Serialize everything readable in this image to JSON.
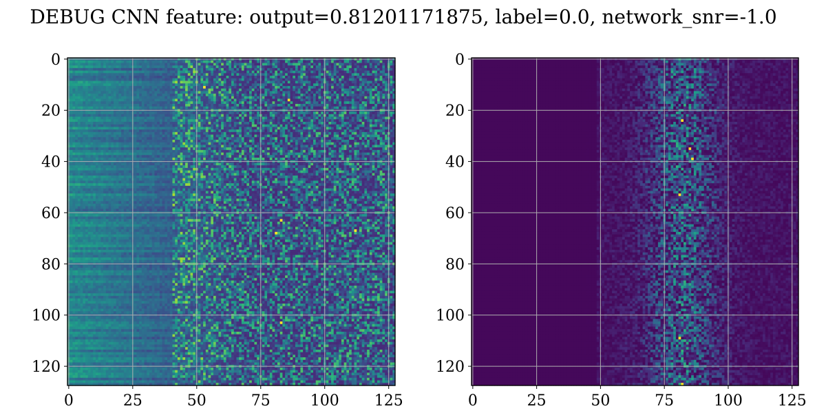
{
  "figure": {
    "title": "DEBUG CNN feature: output=0.81201171875, label=0.0, network_snr=-1.0"
  },
  "chart_data": [
    {
      "type": "heatmap",
      "panel": "left",
      "title": "",
      "xlabel": "",
      "ylabel": "",
      "shape": [
        128,
        128
      ],
      "xlim": [
        -0.5,
        127.5
      ],
      "ylim": [
        127.5,
        -0.5
      ],
      "xticks": [
        0,
        25,
        50,
        75,
        100,
        125
      ],
      "yticks": [
        0,
        20,
        40,
        60,
        80,
        100,
        120
      ],
      "colormap": "viridis",
      "grid": true,
      "bright_points": [
        {
          "x": 83,
          "y": 63
        },
        {
          "x": 83,
          "y": 103
        },
        {
          "x": 81,
          "y": 68
        },
        {
          "x": 53,
          "y": 11
        },
        {
          "x": 86,
          "y": 16
        },
        {
          "x": 112,
          "y": 67
        }
      ]
    },
    {
      "type": "heatmap",
      "panel": "right",
      "title": "",
      "xlabel": "",
      "ylabel": "",
      "shape": [
        128,
        128
      ],
      "xlim": [
        -0.5,
        127.5
      ],
      "ylim": [
        127.5,
        -0.5
      ],
      "xticks": [
        0,
        25,
        50,
        75,
        100,
        125
      ],
      "yticks": [
        0,
        20,
        40,
        60,
        80,
        100,
        120
      ],
      "colormap": "viridis",
      "grid": true,
      "bright_points": [
        {
          "x": 85,
          "y": 35
        },
        {
          "x": 86,
          "y": 39
        },
        {
          "x": 81,
          "y": 53
        },
        {
          "x": 82,
          "y": 24
        },
        {
          "x": 82,
          "y": 127
        },
        {
          "x": 81,
          "y": 109
        }
      ]
    }
  ]
}
